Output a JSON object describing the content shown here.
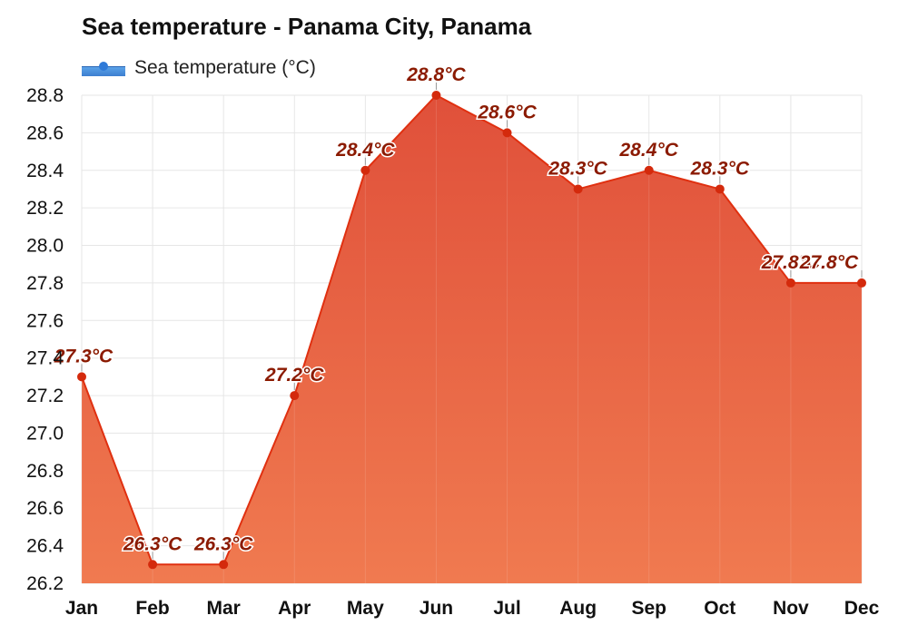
{
  "chart_data": {
    "type": "area",
    "title": "Sea temperature - Panama City, Panama",
    "categories": [
      "Jan",
      "Feb",
      "Mar",
      "Apr",
      "May",
      "Jun",
      "Jul",
      "Aug",
      "Sep",
      "Oct",
      "Nov",
      "Dec"
    ],
    "series": [
      {
        "name": "Sea temperature (°C)",
        "values": [
          27.3,
          26.3,
          26.3,
          27.2,
          28.4,
          28.8,
          28.6,
          28.3,
          28.4,
          28.3,
          27.8,
          27.8
        ],
        "data_labels": [
          "27.3°C",
          "26.3°C",
          "26.3°C",
          "27.2°C",
          "28.4°C",
          "28.8°C",
          "28.6°C",
          "28.3°C",
          "28.4°C",
          "28.3°C",
          "27.8°C",
          "27.8°C"
        ]
      }
    ],
    "y_ticks": [
      "26.2",
      "26.4",
      "26.6",
      "26.8",
      "27.0",
      "27.2",
      "27.4",
      "27.6",
      "27.8",
      "28.0",
      "28.2",
      "28.4",
      "28.6",
      "28.8"
    ],
    "ylim": [
      26.2,
      28.8
    ],
    "grid": true,
    "legend_position": "top-left",
    "colors": {
      "line": "#e03010",
      "marker": "#d42a0c",
      "fill_top": "#e0503a",
      "fill_bottom": "#f07a50",
      "label": "#8b1a00",
      "grid": "#e6e6e6",
      "legend": "#3d7fd0"
    }
  }
}
